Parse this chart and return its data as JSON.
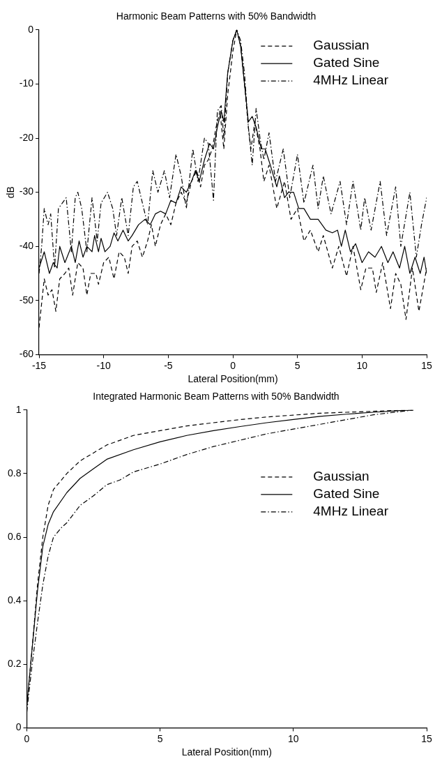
{
  "chart_data": [
    {
      "type": "line",
      "title": "Harmonic Beam Patterns with 50% Bandwidth",
      "xlabel": "Lateral Position(mm)",
      "ylabel": "dB",
      "xlim": [
        -15,
        15
      ],
      "xticks": [
        -15,
        -10,
        -5,
        0,
        5,
        10,
        15
      ],
      "ylim": [
        -60,
        0
      ],
      "yticks": [
        -60,
        -50,
        -40,
        -30,
        -20,
        -10,
        0
      ],
      "grid": false,
      "legend": "top right",
      "marker": "none",
      "series": [
        {
          "name": "Gaussian",
          "color": "#000000",
          "line_style": "dashed",
          "x": [
            -15,
            -14.6,
            -14.3,
            -14,
            -13.7,
            -13.4,
            -13,
            -12.7,
            -12.4,
            -12,
            -11.6,
            -11.3,
            -11,
            -10.6,
            -10.4,
            -10,
            -9.6,
            -9.2,
            -8.8,
            -8.4,
            -8.1,
            -7.8,
            -7.4,
            -7,
            -6.6,
            -6.3,
            -6,
            -5.6,
            -5.2,
            -4.8,
            -4.4,
            -4,
            -3.6,
            -3.2,
            -2.8,
            -2.5,
            -2.2,
            -1.9,
            -1.6,
            -1.3,
            -1,
            -0.7,
            -0.4,
            0,
            0.3,
            0.6,
            0.9,
            1.2,
            1.4,
            1.7,
            2.1,
            2.4,
            2.8,
            3.4,
            4,
            4.5,
            5,
            5.5,
            6,
            6.6,
            7,
            7.7,
            8.2,
            8.8,
            9.3,
            9.9,
            10.3,
            10.8,
            11.1,
            11.6,
            12.2,
            12.6,
            13,
            13.4,
            13.9,
            14.4,
            15
          ],
          "values": [
            -55,
            -46,
            -49,
            -48,
            -52,
            -46,
            -45,
            -44,
            -49,
            -43,
            -44,
            -49,
            -45,
            -45,
            -47,
            -43,
            -42,
            -46,
            -41,
            -42,
            -45,
            -40,
            -39,
            -42,
            -39,
            -36,
            -40,
            -36,
            -34,
            -36,
            -32,
            -30,
            -32,
            -28,
            -26,
            -29,
            -25,
            -24,
            -22,
            -18,
            -15,
            -22,
            -12,
            -4,
            0,
            -3,
            -10,
            -18,
            -22,
            -17,
            -22,
            -28,
            -25,
            -33,
            -28,
            -35,
            -33,
            -39,
            -37,
            -41,
            -38,
            -44,
            -40,
            -45.5,
            -40,
            -48,
            -44,
            -44,
            -48.5,
            -43,
            -51.5,
            -45,
            -47,
            -53.5,
            -44,
            -52,
            -44
          ]
        },
        {
          "name": "Gated Sine",
          "color": "#000000",
          "line_style": "solid",
          "x": [
            -15,
            -14.6,
            -14.2,
            -13.9,
            -13.6,
            -13.4,
            -13,
            -12.5,
            -12.2,
            -11.9,
            -11.6,
            -11.3,
            -10.9,
            -10.7,
            -10.4,
            -10.2,
            -9.9,
            -9.5,
            -9.2,
            -8.9,
            -8.5,
            -8.1,
            -7.8,
            -7.3,
            -6.8,
            -6.4,
            -6,
            -5.6,
            -5.2,
            -4.8,
            -4.4,
            -4,
            -3.6,
            -3.2,
            -2.9,
            -2.6,
            -2.2,
            -1.8,
            -1.5,
            -1.2,
            -0.9,
            -0.7,
            -0.4,
            0,
            0.3,
            0.6,
            0.9,
            1.2,
            1.5,
            1.8,
            2.2,
            2.5,
            2.9,
            3.4,
            3.6,
            4,
            4.3,
            4.7,
            5.1,
            5.5,
            6,
            6.6,
            7.2,
            7.7,
            8.1,
            8.4,
            8.7,
            9.1,
            9.5,
            10,
            10.5,
            11,
            11.5,
            12,
            12.4,
            12.9,
            13.3,
            13.7,
            14.1,
            14.5,
            14.8,
            15
          ],
          "values": [
            -44,
            -41,
            -45,
            -43,
            -44,
            -40,
            -43,
            -40,
            -43,
            -39,
            -42,
            -40,
            -41,
            -38,
            -41,
            -38.5,
            -41,
            -40,
            -37.5,
            -39,
            -37,
            -39,
            -38,
            -36,
            -35,
            -36,
            -34,
            -33.5,
            -34,
            -31.5,
            -32,
            -29,
            -30,
            -28,
            -26,
            -28,
            -24,
            -21,
            -22,
            -18,
            -15,
            -17,
            -8,
            -2,
            0,
            -3,
            -10,
            -17,
            -16,
            -18,
            -22,
            -22,
            -25,
            -29,
            -27,
            -31,
            -30,
            -30,
            -33,
            -33,
            -35,
            -35,
            -37,
            -37.5,
            -37,
            -40,
            -37,
            -41,
            -39.5,
            -43,
            -41,
            -42,
            -40,
            -43,
            -41,
            -44,
            -40,
            -45,
            -42,
            -45,
            -42,
            -45
          ]
        },
        {
          "name": "4MHz Linear",
          "color": "#000000",
          "line_style": "dashdot",
          "x": [
            -15,
            -14.8,
            -14.6,
            -14.3,
            -14.1,
            -13.8,
            -13.5,
            -13.2,
            -12.9,
            -12.5,
            -12.2,
            -12,
            -11.7,
            -11.3,
            -10.9,
            -10.5,
            -10.2,
            -9.7,
            -9.3,
            -9,
            -8.6,
            -8.1,
            -7.7,
            -7.4,
            -7,
            -6.6,
            -6.2,
            -5.8,
            -5.3,
            -4.9,
            -4.4,
            -4,
            -3.6,
            -3.1,
            -2.7,
            -2.2,
            -1.9,
            -1.5,
            -1.2,
            -0.9,
            -0.7,
            -0.4,
            0,
            0.3,
            0.6,
            0.9,
            1.2,
            1.5,
            1.8,
            2.1,
            2.4,
            2.8,
            3.3,
            3.9,
            4.4,
            5,
            5.5,
            6.2,
            6.6,
            7,
            7.6,
            8.3,
            8.8,
            9.3,
            9.9,
            10.2,
            10.7,
            11.4,
            11.9,
            12.6,
            13,
            13.7,
            14.2,
            14.6,
            15
          ],
          "values": [
            -45,
            -40,
            -33,
            -36,
            -34,
            -44,
            -33,
            -32,
            -31,
            -41,
            -31,
            -30,
            -33,
            -41,
            -31,
            -39,
            -32,
            -30,
            -33,
            -38,
            -31,
            -38,
            -29,
            -28,
            -32,
            -36,
            -26,
            -30,
            -26,
            -31,
            -23,
            -27,
            -33,
            -22,
            -28,
            -20,
            -21,
            -31.5,
            -15,
            -14,
            -20,
            -8,
            -2,
            0,
            -2,
            -8,
            -18,
            -25,
            -14.5,
            -20,
            -24,
            -19,
            -28,
            -22,
            -31,
            -23,
            -32,
            -25,
            -33,
            -27,
            -34,
            -28,
            -36,
            -28,
            -37,
            -31,
            -37,
            -28,
            -38,
            -29,
            -40,
            -30,
            -42,
            -36,
            -31
          ]
        }
      ]
    },
    {
      "type": "line",
      "title": "Integrated Harmonic Beam Patterns with 50% Bandwidth",
      "xlabel": "Lateral Position(mm)",
      "xlim": [
        0,
        15
      ],
      "xticks": [
        0,
        5,
        10,
        15
      ],
      "ylim": [
        0,
        1
      ],
      "yticks": [
        0,
        0.2,
        0.4,
        0.6,
        0.8,
        1
      ],
      "grid": false,
      "legend": "right",
      "marker": "none",
      "series": [
        {
          "name": "Gaussian",
          "color": "#000000",
          "line_style": "dashed",
          "x": [
            0,
            0.2,
            0.4,
            0.6,
            0.8,
            1,
            1.5,
            2,
            3,
            4,
            5,
            6,
            7,
            8,
            9,
            10,
            11,
            12,
            13,
            14,
            14.5
          ],
          "values": [
            0.07,
            0.25,
            0.45,
            0.6,
            0.7,
            0.75,
            0.8,
            0.84,
            0.89,
            0.92,
            0.935,
            0.95,
            0.96,
            0.97,
            0.978,
            0.984,
            0.99,
            0.993,
            0.996,
            0.999,
            1
          ]
        },
        {
          "name": "Gated Sine",
          "color": "#000000",
          "line_style": "solid",
          "x": [
            0,
            0.2,
            0.4,
            0.6,
            0.8,
            1,
            1.5,
            2,
            2.5,
            3,
            4,
            5,
            6,
            7,
            8,
            9,
            10,
            11,
            12,
            13,
            14,
            14.5
          ],
          "values": [
            0.07,
            0.25,
            0.43,
            0.57,
            0.64,
            0.68,
            0.74,
            0.785,
            0.815,
            0.845,
            0.875,
            0.9,
            0.92,
            0.935,
            0.948,
            0.96,
            0.97,
            0.98,
            0.987,
            0.993,
            0.998,
            1
          ]
        },
        {
          "name": "4MHz Linear",
          "color": "#000000",
          "line_style": "dashdot",
          "x": [
            0,
            0.2,
            0.4,
            0.6,
            0.8,
            1,
            1.3,
            1.5,
            2,
            2.5,
            3,
            3.5,
            4,
            5,
            6,
            7,
            8,
            9,
            10,
            11,
            12,
            13,
            14,
            14.5
          ],
          "values": [
            0.05,
            0.2,
            0.33,
            0.45,
            0.54,
            0.6,
            0.63,
            0.645,
            0.7,
            0.73,
            0.765,
            0.78,
            0.805,
            0.83,
            0.86,
            0.885,
            0.905,
            0.925,
            0.94,
            0.955,
            0.97,
            0.985,
            0.995,
            1
          ]
        }
      ]
    }
  ]
}
